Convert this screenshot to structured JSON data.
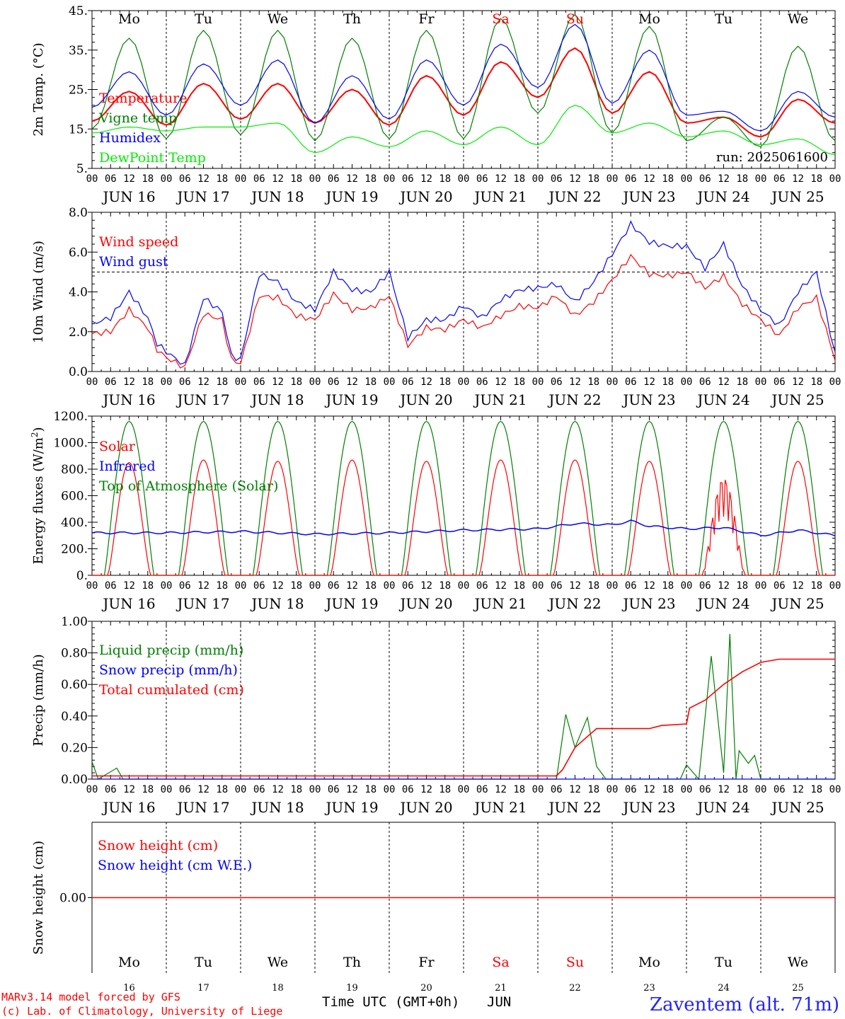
{
  "chart_data": [
    {
      "type": "line",
      "ylabel": "2m Temp. (°C)",
      "ylim": [
        5,
        45
      ],
      "yticks": [
        5,
        15,
        25,
        35,
        45
      ],
      "ytick_labels": [
        "5.",
        "15.",
        "25.",
        "35.",
        "45."
      ],
      "x_hours": [
        0,
        12,
        24,
        36,
        48,
        60,
        72,
        84,
        96,
        108,
        120,
        132,
        144,
        156,
        168,
        180,
        192,
        204,
        216,
        228,
        240
      ],
      "series": [
        {
          "name": "Temperature",
          "color": "#ff0000",
          "values": [
            17,
            24.5,
            16,
            26.5,
            17.5,
            26.5,
            16.5,
            25,
            16,
            28.5,
            18.5,
            32,
            23,
            35.5,
            19,
            29.5,
            16.5,
            18,
            13,
            22.5,
            16.5
          ]
        },
        {
          "name": "Vigne temp",
          "color": "#008000",
          "values": [
            15,
            38,
            12.5,
            40,
            13.5,
            40,
            12,
            38,
            12.5,
            40,
            12.5,
            43,
            19,
            44,
            14,
            41,
            12,
            18,
            10.5,
            36,
            12
          ]
        },
        {
          "name": "Humidex",
          "color": "#0000ff",
          "values": [
            20.5,
            29.5,
            18.5,
            31.5,
            21,
            32.5,
            16.5,
            28.5,
            17.5,
            32.5,
            21,
            36.5,
            25.5,
            41.5,
            21.5,
            35,
            18.5,
            19.5,
            14.5,
            24.5,
            18
          ]
        },
        {
          "name": "DewPoint Temp",
          "color": "#00ee00",
          "values": [
            14,
            15.5,
            14.5,
            15.5,
            15.5,
            16.5,
            9,
            13,
            10.5,
            14.5,
            11,
            15.5,
            11,
            21,
            14,
            16.5,
            13,
            14.5,
            11,
            12.5,
            8.5
          ]
        }
      ],
      "annotation": "run: 2025061600",
      "day_labels": [
        "Mo",
        "Tu",
        "We",
        "Th",
        "Fr",
        "Sa",
        "Su",
        "Mo",
        "Tu",
        "We"
      ],
      "weekend_color": "#ff0000"
    },
    {
      "type": "line",
      "ylabel": "10m Wind (m/s)",
      "ylim": [
        0,
        8
      ],
      "yticks": [
        0,
        2,
        4,
        6,
        8
      ],
      "ytick_labels": [
        "0.0",
        "2.0",
        "4.0",
        "6.0",
        "8.0"
      ],
      "reference_line": 5.0,
      "x_hours": [
        0,
        6,
        12,
        18,
        21,
        24,
        30,
        36,
        42,
        45,
        48,
        54,
        60,
        66,
        72,
        78,
        84,
        90,
        96,
        102,
        108,
        114,
        120,
        126,
        132,
        138,
        144,
        150,
        156,
        162,
        168,
        174,
        180,
        186,
        192,
        198,
        204,
        210,
        216,
        222,
        228,
        234,
        240
      ],
      "series": [
        {
          "name": "Wind speed",
          "color": "#ff0000",
          "values": [
            1.9,
            2.0,
            3.1,
            2.2,
            1.1,
            0.7,
            0.2,
            2.9,
            2.6,
            0.6,
            0.4,
            3.8,
            3.7,
            2.8,
            2.6,
            3.9,
            3.1,
            3.2,
            3.8,
            1.3,
            2.2,
            2.1,
            2.6,
            2.2,
            2.8,
            3.3,
            3.2,
            3.8,
            2.8,
            3.5,
            4.6,
            5.8,
            4.9,
            4.8,
            5.0,
            4.2,
            4.8,
            3.4,
            2.6,
            1.8,
            3.2,
            3.7,
            0.6
          ]
        },
        {
          "name": "Wind gust",
          "color": "#0000ff",
          "values": [
            2.4,
            2.7,
            4.0,
            2.7,
            1.4,
            1.0,
            0.3,
            3.7,
            3.0,
            0.8,
            0.6,
            4.9,
            4.5,
            3.5,
            3.1,
            5.0,
            4.1,
            4.0,
            5.0,
            1.7,
            2.6,
            2.6,
            3.3,
            2.7,
            3.6,
            4.1,
            4.2,
            4.4,
            3.5,
            4.5,
            5.9,
            7.4,
            6.5,
            6.3,
            6.3,
            5.2,
            6.4,
            4.3,
            3.1,
            2.3,
            4.0,
            5.0,
            0.9
          ]
        }
      ]
    },
    {
      "type": "line",
      "ylabel": "Energy fluxes (W/m²)",
      "ylim": [
        0,
        1200
      ],
      "yticks": [
        0,
        200,
        400,
        600,
        800,
        1000,
        1200
      ],
      "ytick_labels": [
        "0.",
        "200.",
        "400.",
        "600.",
        "800.",
        "1000.",
        "1200."
      ],
      "solar_peaks": [
        850,
        870,
        860,
        870,
        860,
        870,
        870,
        860,
        760,
        860
      ],
      "toa_peak": 1160,
      "infrared_series": {
        "x_hours": [
          0,
          24,
          48,
          72,
          96,
          120,
          144,
          156,
          168,
          174,
          180,
          186,
          192,
          204,
          216,
          228,
          240
        ],
        "values": [
          320,
          320,
          330,
          310,
          320,
          340,
          350,
          390,
          380,
          410,
          370,
          360,
          350,
          360,
          300,
          340,
          300
        ]
      },
      "series": [
        {
          "name": "Solar",
          "color": "#ff0000"
        },
        {
          "name": "Infrared",
          "color": "#0000ff"
        },
        {
          "name": "Top of Atmosphere (Solar)",
          "color": "#008000"
        }
      ]
    },
    {
      "type": "line",
      "ylabel": "Precip (mm/h)",
      "ylim": [
        0,
        1
      ],
      "yticks": [
        0,
        0.2,
        0.4,
        0.6,
        0.8,
        1.0
      ],
      "ytick_labels": [
        "0.00",
        "0.20",
        "0.40",
        "0.60",
        "0.80",
        "1.00"
      ],
      "series": [
        {
          "name": "Liquid precip (mm/h)",
          "color": "#008000",
          "x_hours": [
            0,
            2,
            8,
            10,
            12,
            150,
            153,
            156,
            160,
            163,
            166,
            170,
            174,
            190,
            192,
            196,
            200,
            204,
            206,
            208,
            209,
            212,
            214,
            216,
            240
          ],
          "values": [
            0.11,
            0.0,
            0.07,
            0.0,
            0.0,
            0.0,
            0.41,
            0.2,
            0.39,
            0.08,
            0.0,
            0.0,
            0.0,
            0.0,
            0.09,
            0.0,
            0.78,
            0.04,
            0.92,
            0.0,
            0.18,
            0.1,
            0.15,
            0.0,
            0.0
          ]
        },
        {
          "name": "Snow precip (mm/h)",
          "color": "#0000ff",
          "x_hours": [
            0,
            240
          ],
          "values": [
            0,
            0
          ]
        },
        {
          "name": "Total cumulated (cm)",
          "color": "#ff0000",
          "x_hours": [
            0,
            150,
            152,
            156,
            160,
            163,
            168,
            180,
            184,
            192,
            193,
            198,
            204,
            210,
            216,
            222,
            240
          ],
          "values": [
            0.02,
            0.02,
            0.06,
            0.2,
            0.27,
            0.32,
            0.32,
            0.32,
            0.34,
            0.35,
            0.45,
            0.5,
            0.6,
            0.68,
            0.74,
            0.76,
            0.76
          ]
        }
      ]
    },
    {
      "type": "line",
      "ylabel": "Snow height (cm)",
      "ytick_labels": [
        "0.00"
      ],
      "series": [
        {
          "name": "Snow height (cm)",
          "color": "#ff0000",
          "values": [
            0,
            0
          ]
        },
        {
          "name": "Snow height (cm W.E.)",
          "color": "#0000ff",
          "values": [
            0,
            0
          ]
        }
      ]
    }
  ],
  "x_axis": {
    "hour_labels": [
      "00",
      "06",
      "12",
      "18"
    ],
    "date_labels": [
      "JUN 16",
      "JUN 17",
      "JUN 18",
      "JUN 19",
      "JUN 20",
      "JUN 21",
      "JUN 22",
      "JUN 23",
      "JUN 24",
      "JUN 25"
    ],
    "day_numbers": [
      "16",
      "17",
      "18",
      "19",
      "20",
      "21",
      "22",
      "23",
      "24",
      "25"
    ],
    "title": "Time UTC (GMT+0h)",
    "month": "JUN"
  },
  "footer": {
    "model_line": "MARv3.14 model forced by GFS",
    "credit_line": "(c) Lab. of Climatology, University of Liege",
    "station": "Zaventem (alt. 71m)"
  }
}
